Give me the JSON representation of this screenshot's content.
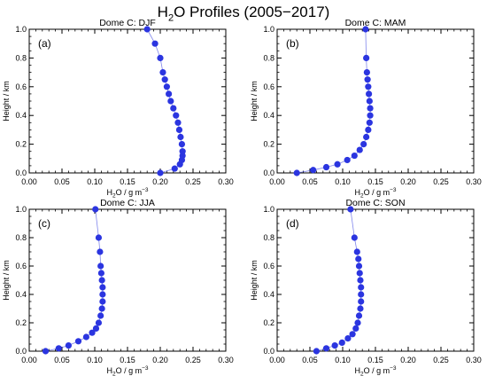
{
  "figure": {
    "title_pre": "H",
    "title_sub": "2",
    "title_post": "O Profiles (2005−2017)"
  },
  "chart_data": [
    {
      "type": "scatter",
      "panel_label": "(a)",
      "title": "Dome C: DJF",
      "xlabel_pre": "H",
      "xlabel_sub": "2",
      "xlabel_mid": "O / g m",
      "xlabel_sup": "−3",
      "ylabel": "Height / km",
      "xlim": [
        0,
        0.3
      ],
      "ylim": [
        0,
        1.0
      ],
      "xticks": [
        "0.00",
        "0.05",
        "0.10",
        "0.15",
        "0.20",
        "0.25",
        "0.30"
      ],
      "yticks": [
        "0.0",
        "0.2",
        "0.4",
        "0.6",
        "0.8",
        "1.0"
      ],
      "marker_color": "#2b35e0",
      "x": [
        0.2,
        0.222,
        0.23,
        0.233,
        0.234,
        0.234,
        0.233,
        0.231,
        0.229,
        0.227,
        0.224,
        0.22,
        0.216,
        0.213,
        0.21,
        0.207,
        0.204,
        0.2,
        0.192,
        0.18
      ],
      "y": [
        0.0,
        0.03,
        0.06,
        0.09,
        0.12,
        0.15,
        0.2,
        0.25,
        0.3,
        0.35,
        0.4,
        0.45,
        0.5,
        0.55,
        0.6,
        0.65,
        0.7,
        0.8,
        0.9,
        1.0
      ]
    },
    {
      "type": "scatter",
      "panel_label": "(b)",
      "title": "Dome C: MAM",
      "xlabel_pre": "H",
      "xlabel_sub": "2",
      "xlabel_mid": "O / g m",
      "xlabel_sup": "−3",
      "ylabel": "Height / km",
      "xlim": [
        0,
        0.3
      ],
      "ylim": [
        0,
        1.0
      ],
      "xticks": [
        "0.00",
        "0.05",
        "0.10",
        "0.15",
        "0.20",
        "0.25",
        "0.30"
      ],
      "yticks": [
        "0.0",
        "0.2",
        "0.4",
        "0.6",
        "0.8",
        "1.0"
      ],
      "marker_color": "#2b35e0",
      "x": [
        0.03,
        0.055,
        0.075,
        0.092,
        0.107,
        0.118,
        0.126,
        0.132,
        0.136,
        0.139,
        0.141,
        0.142,
        0.142,
        0.141,
        0.14,
        0.139,
        0.138,
        0.137,
        0.136,
        0.135
      ],
      "y": [
        0.0,
        0.02,
        0.04,
        0.06,
        0.09,
        0.12,
        0.16,
        0.2,
        0.25,
        0.3,
        0.35,
        0.4,
        0.45,
        0.5,
        0.55,
        0.6,
        0.65,
        0.7,
        0.8,
        1.0
      ]
    },
    {
      "type": "scatter",
      "panel_label": "(c)",
      "title": "Dome C: JJA",
      "xlabel_pre": "H",
      "xlabel_sub": "2",
      "xlabel_mid": "O / g m",
      "xlabel_sup": "−3",
      "ylabel": "Height / km",
      "xlim": [
        0,
        0.3
      ],
      "ylim": [
        0,
        1.0
      ],
      "xticks": [
        "0.00",
        "0.05",
        "0.10",
        "0.15",
        "0.20",
        "0.25",
        "0.30"
      ],
      "yticks": [
        "0.0",
        "0.2",
        "0.4",
        "0.6",
        "0.8",
        "1.0"
      ],
      "marker_color": "#2b35e0",
      "x": [
        0.025,
        0.045,
        0.06,
        0.075,
        0.087,
        0.096,
        0.102,
        0.106,
        0.109,
        0.111,
        0.112,
        0.112,
        0.112,
        0.111,
        0.11,
        0.109,
        0.108,
        0.106,
        0.101
      ],
      "y": [
        0.0,
        0.02,
        0.04,
        0.07,
        0.1,
        0.13,
        0.16,
        0.2,
        0.25,
        0.3,
        0.35,
        0.4,
        0.45,
        0.5,
        0.55,
        0.6,
        0.7,
        0.8,
        1.0
      ]
    },
    {
      "type": "scatter",
      "panel_label": "(d)",
      "title": "Dome C: SON",
      "xlabel_pre": "H",
      "xlabel_sub": "2",
      "xlabel_mid": "O / g m",
      "xlabel_sup": "−3",
      "ylabel": "Height / km",
      "xlim": [
        0,
        0.3
      ],
      "ylim": [
        0,
        1.0
      ],
      "xticks": [
        "0.00",
        "0.05",
        "0.10",
        "0.15",
        "0.20",
        "0.25",
        "0.30"
      ],
      "yticks": [
        "0.0",
        "0.2",
        "0.4",
        "0.6",
        "0.8",
        "1.0"
      ],
      "marker_color": "#2b35e0",
      "x": [
        0.06,
        0.075,
        0.088,
        0.099,
        0.108,
        0.115,
        0.12,
        0.123,
        0.125,
        0.127,
        0.128,
        0.128,
        0.128,
        0.127,
        0.126,
        0.125,
        0.124,
        0.122,
        0.118,
        0.112
      ],
      "y": [
        0.0,
        0.02,
        0.04,
        0.06,
        0.09,
        0.12,
        0.16,
        0.2,
        0.25,
        0.3,
        0.35,
        0.4,
        0.45,
        0.5,
        0.55,
        0.6,
        0.65,
        0.7,
        0.8,
        1.0
      ]
    }
  ]
}
